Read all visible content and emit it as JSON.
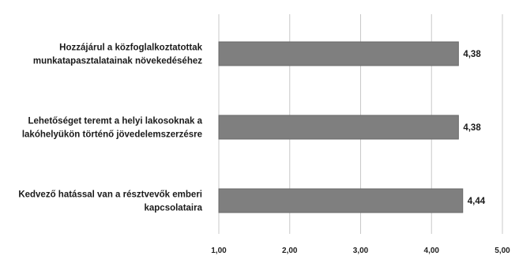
{
  "chart_data": {
    "type": "bar",
    "orientation": "horizontal",
    "categories": [
      [
        "Hozzájárul a közfoglalkoztatottak",
        "munkatapasztalatainak növekedéséhez"
      ],
      [
        "Lehetőséget teremt a helyi lakosoknak a",
        "lakóhelyükön történő jövedelemszerzésre"
      ],
      [
        "Kedvező hatással van a résztvevők emberi",
        "kapcsolataira"
      ]
    ],
    "values": [
      4.38,
      4.38,
      4.44
    ],
    "value_labels": [
      "4,38",
      "4,38",
      "4,44"
    ],
    "xlim": [
      1,
      5
    ],
    "x_ticks": [
      1,
      2,
      3,
      4,
      5
    ],
    "x_tick_labels": [
      "1,00",
      "2,00",
      "3,00",
      "4,00",
      "5,00"
    ],
    "bar_color": "#7f7f7f",
    "grid": "vertical",
    "legend": "none"
  }
}
